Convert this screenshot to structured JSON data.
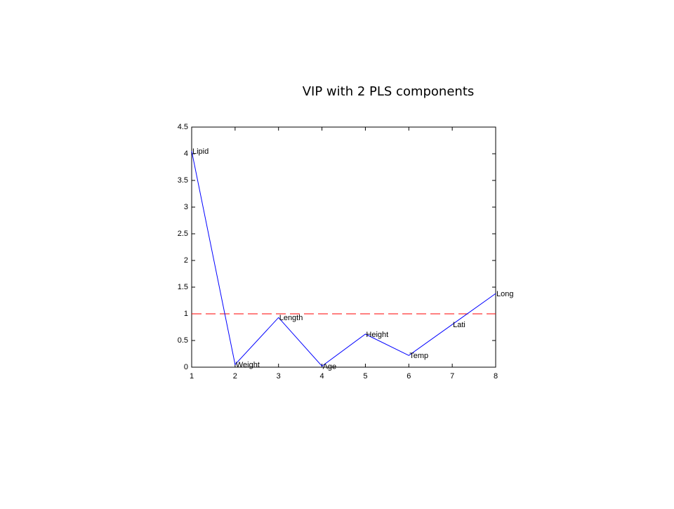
{
  "chart_data": {
    "type": "line",
    "title": "VIP with 2 PLS components",
    "x": [
      1,
      2,
      3,
      4,
      5,
      6,
      7,
      8
    ],
    "values": [
      4.05,
      0.05,
      0.93,
      0.02,
      0.62,
      0.22,
      0.8,
      1.38
    ],
    "point_labels": [
      "Lipid",
      "Weight",
      "Length",
      "Age",
      "Height",
      "Temp",
      "Lati",
      "Long"
    ],
    "color": "#0000ff",
    "reference_line": {
      "value": 1,
      "color": "#ff0000"
    },
    "xlim": [
      1,
      8
    ],
    "xticks": [
      1,
      2,
      3,
      4,
      5,
      6,
      7,
      8
    ],
    "ylim": [
      0,
      4.5
    ],
    "yticks": [
      0,
      0.5,
      1,
      1.5,
      2,
      2.5,
      3,
      3.5,
      4,
      4.5
    ]
  }
}
